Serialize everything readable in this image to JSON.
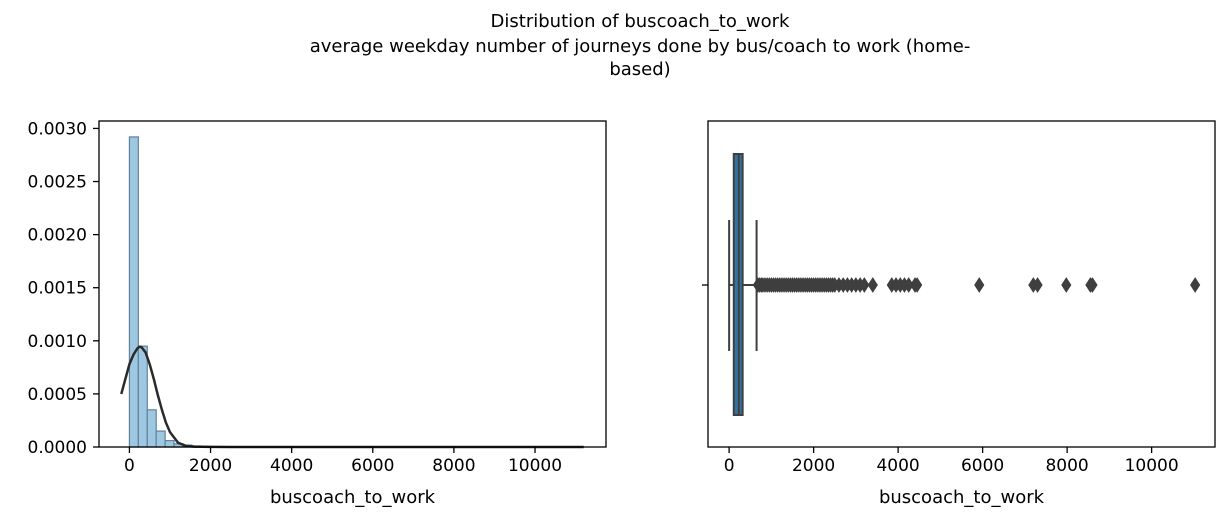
{
  "chart_data": [
    {
      "type": "histogram",
      "title_lines": [
        "Distribution of buscoach_to_work",
        "average weekday number of journeys done by bus/coach to work (home-",
        "based)"
      ],
      "xlabel": "buscoach_to_work",
      "ylabel": "",
      "xlim": [
        -750,
        11750
      ],
      "ylim": [
        0,
        0.00307
      ],
      "xticks": [
        0,
        2000,
        4000,
        6000,
        8000,
        10000
      ],
      "yticks": [
        0.0,
        0.0005,
        0.001,
        0.0015,
        0.002,
        0.0025,
        0.003
      ],
      "ytick_labels": [
        "0.0000",
        "0.0005",
        "0.0010",
        "0.0015",
        "0.0020",
        "0.0025",
        "0.0030"
      ],
      "bins": {
        "edges": [
          0,
          220,
          440,
          660,
          880,
          1100,
          1320,
          1540,
          1760,
          1980,
          2200
        ],
        "density": [
          0.00292,
          0.00095,
          0.00035,
          0.00015,
          6e-05,
          3e-05,
          1.8e-05,
          1e-05,
          5e-06,
          3e-06
        ]
      },
      "kde": {
        "x": [
          -200,
          0,
          100,
          200,
          250,
          300,
          400,
          500,
          600,
          700,
          800,
          900,
          1000,
          1200,
          1400,
          1600,
          1800,
          2000,
          2500,
          3000,
          5000,
          8000,
          11200
        ],
        "y": [
          0.0005,
          0.00078,
          0.00087,
          0.00093,
          0.000945,
          0.00094,
          0.00089,
          0.00078,
          0.00064,
          0.00049,
          0.00035,
          0.00023,
          0.00014,
          4e-05,
          1e-05,
          4e-06,
          2e-06,
          1e-06,
          3e-07,
          0.0,
          0.0,
          0.0,
          0.0
        ]
      },
      "colors": {
        "bar": "#9ec8e2",
        "bar_edge": "#61819a",
        "kde": "#2b2b2b"
      }
    },
    {
      "type": "boxplot",
      "xlabel": "buscoach_to_work",
      "xlim": [
        -500,
        11500
      ],
      "xticks": [
        0,
        2000,
        4000,
        6000,
        8000,
        10000
      ],
      "box": {
        "whisker_low": 0,
        "q1": 110,
        "median": 230,
        "q3": 320,
        "whisker_high": 650
      },
      "outliers": [
        680,
        720,
        760,
        800,
        850,
        900,
        950,
        1000,
        1050,
        1100,
        1150,
        1200,
        1250,
        1300,
        1350,
        1400,
        1450,
        1500,
        1550,
        1600,
        1650,
        1700,
        1750,
        1800,
        1850,
        1900,
        1950,
        2000,
        2050,
        2100,
        2150,
        2200,
        2250,
        2300,
        2350,
        2400,
        2450,
        2500,
        2600,
        2700,
        2800,
        2900,
        3000,
        3100,
        3200,
        3400,
        3850,
        3950,
        4050,
        4150,
        4250,
        4400,
        4450,
        5920,
        7200,
        7300,
        7980,
        8550,
        8600,
        11030
      ],
      "colors": {
        "box": "#3274a1",
        "line": "#3f3f3f"
      }
    }
  ]
}
